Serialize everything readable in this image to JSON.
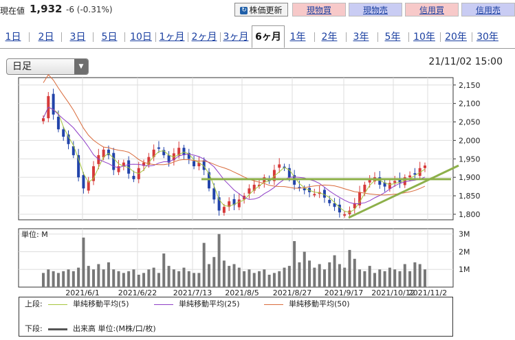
{
  "header": {
    "price_label": "現在値",
    "price": "1,932",
    "change": "-6 (-0.31%)",
    "update_button": "株価更新",
    "update_icon": "refresh-icon",
    "buttons": [
      "現物買",
      "現物売",
      "信用買",
      "信用売"
    ]
  },
  "tabs": [
    "1日",
    "2日",
    "3日",
    "5日",
    "10日",
    "1ヶ月",
    "2ヶ月",
    "3ヶ月",
    "6ヶ月",
    "1年",
    "2年",
    "3年",
    "5年",
    "10年",
    "20年",
    "30年"
  ],
  "active_tab": "6ヶ月",
  "period_select": {
    "value": "日足"
  },
  "datetime": "21/11/02 15:00",
  "colors": {
    "up": "#d63a3a",
    "down": "#2244aa",
    "ma5": "#a5c63b",
    "ma25": "#8e3dc6",
    "ma50": "#d96a3a",
    "trend": "#8db04a",
    "volume": "#777777"
  },
  "chart_data": {
    "type": "candlestick",
    "x_ticks": [
      "2021/6/1",
      "2021/6/22",
      "2021/7/13",
      "2021/8/5",
      "2021/8/27",
      "2021/9/17",
      "2021/10/12",
      "2021/11/2"
    ],
    "y_ticks": [
      "2,150",
      "2,100",
      "2,050",
      "2,000",
      "1,950",
      "1,900",
      "1,850",
      "1,800"
    ],
    "ylim": [
      1785,
      2170
    ],
    "close_path": [
      2060,
      2120,
      2070,
      2030,
      2010,
      1990,
      1960,
      1900,
      1870,
      1890,
      1930,
      1960,
      1975,
      1960,
      1920,
      1930,
      1940,
      1910,
      1895,
      1925,
      1940,
      1955,
      1975,
      1980,
      1960,
      1940,
      1965,
      1980,
      1960,
      1950,
      1930,
      1940,
      1920,
      1870,
      1840,
      1810,
      1820,
      1835,
      1825,
      1840,
      1850,
      1870,
      1880,
      1880,
      1900,
      1890,
      1920,
      1935,
      1925,
      1900,
      1880,
      1870,
      1865,
      1860,
      1855,
      1860,
      1845,
      1830,
      1820,
      1805,
      1800,
      1810,
      1830,
      1860,
      1880,
      1895,
      1900,
      1880,
      1875,
      1885,
      1890,
      1885,
      1900,
      1905,
      1910,
      1925,
      1932
    ],
    "volume_ticks": [
      "3M",
      "2M",
      "1M"
    ],
    "volume_max": 3.3,
    "volume": [
      0.8,
      1.0,
      0.9,
      0.8,
      0.9,
      1.0,
      0.9,
      1.1,
      2.8,
      1.2,
      1.0,
      1.3,
      1.0,
      1.4,
      1.0,
      0.9,
      0.8,
      0.9,
      1.0,
      0.7,
      0.8,
      1.0,
      1.1,
      0.8,
      1.9,
      1.2,
      1.0,
      0.9,
      1.1,
      0.9,
      0.8,
      0.8,
      2.5,
      1.3,
      1.7,
      3.0,
      1.5,
      1.2,
      1.3,
      1.1,
      0.9,
      1.0,
      0.8,
      0.9,
      1.0,
      0.7,
      0.8,
      0.9,
      1.1,
      1.2,
      2.6,
      1.4,
      2.0,
      1.5,
      1.1,
      1.3,
      1.0,
      1.4,
      1.8,
      1.3,
      1.1,
      2.1,
      1.6,
      1.0,
      0.9,
      1.2,
      0.8,
      1.0,
      0.9,
      1.1,
      1.0,
      0.9,
      1.3,
      0.9,
      1.4,
      1.3,
      1.0
    ],
    "support_line": 1895,
    "labels": {
      "volume_unit": "単位: M"
    }
  },
  "legend": {
    "upper_label": "上段:",
    "lower_label": "下段:",
    "ma5": "単純移動平均(5)",
    "ma25": "単純移動平均(25)",
    "ma50": "単純移動平均(50)",
    "volume": "出来高 単位:(M株/口/枚)"
  }
}
